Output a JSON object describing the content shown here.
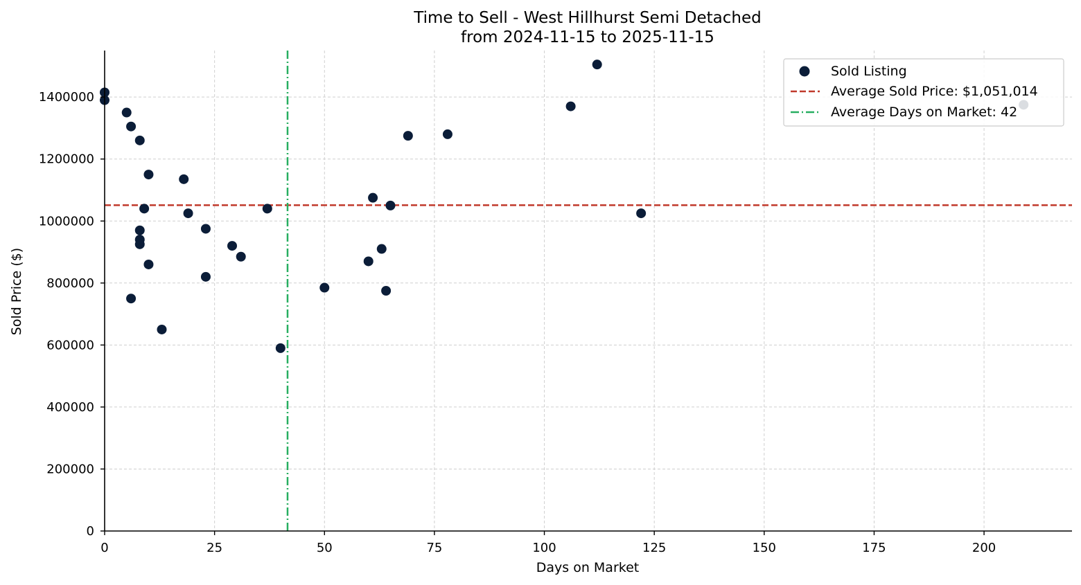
{
  "chart_data": {
    "type": "scatter",
    "title": "Time to Sell - West Hillhurst Semi Detached",
    "subtitle": "from 2024-11-15 to 2025-11-15",
    "xlabel": "Days on Market",
    "ylabel": "Sold Price ($)",
    "xlim": [
      0,
      220
    ],
    "ylim": [
      0,
      1550000
    ],
    "xticks": [
      0,
      25,
      50,
      75,
      100,
      125,
      150,
      175,
      200
    ],
    "yticks": [
      0,
      200000,
      400000,
      600000,
      800000,
      1000000,
      1200000,
      1400000
    ],
    "grid": true,
    "legend_position": "top-right",
    "series": [
      {
        "name": "Sold Listing",
        "color": "#0b1d38",
        "points": [
          {
            "x": 0,
            "y": 1415000
          },
          {
            "x": 0,
            "y": 1390000
          },
          {
            "x": 5,
            "y": 1350000
          },
          {
            "x": 6,
            "y": 1305000
          },
          {
            "x": 6,
            "y": 750000
          },
          {
            "x": 8,
            "y": 1260000
          },
          {
            "x": 8,
            "y": 970000
          },
          {
            "x": 8,
            "y": 940000
          },
          {
            "x": 8,
            "y": 925000
          },
          {
            "x": 9,
            "y": 1040000
          },
          {
            "x": 10,
            "y": 1150000
          },
          {
            "x": 10,
            "y": 860000
          },
          {
            "x": 13,
            "y": 650000
          },
          {
            "x": 18,
            "y": 1135000
          },
          {
            "x": 19,
            "y": 1025000
          },
          {
            "x": 23,
            "y": 975000
          },
          {
            "x": 23,
            "y": 820000
          },
          {
            "x": 29,
            "y": 920000
          },
          {
            "x": 31,
            "y": 885000
          },
          {
            "x": 37,
            "y": 1040000
          },
          {
            "x": 40,
            "y": 590000
          },
          {
            "x": 50,
            "y": 785000
          },
          {
            "x": 60,
            "y": 870000
          },
          {
            "x": 61,
            "y": 1075000
          },
          {
            "x": 63,
            "y": 910000
          },
          {
            "x": 64,
            "y": 775000
          },
          {
            "x": 65,
            "y": 1050000
          },
          {
            "x": 69,
            "y": 1275000
          },
          {
            "x": 78,
            "y": 1280000
          },
          {
            "x": 106,
            "y": 1370000
          },
          {
            "x": 112,
            "y": 1505000
          },
          {
            "x": 122,
            "y": 1025000
          },
          {
            "x": 209,
            "y": 1375000
          }
        ]
      }
    ],
    "reference_lines": [
      {
        "name": "Average Sold Price: $1,051,014",
        "orientation": "horizontal",
        "value": 1051014,
        "color": "#c0392b",
        "style": "dashed"
      },
      {
        "name": "Average Days on Market: 42",
        "orientation": "vertical",
        "value": 41.6,
        "color": "#27ae60",
        "style": "dashdot"
      }
    ]
  }
}
